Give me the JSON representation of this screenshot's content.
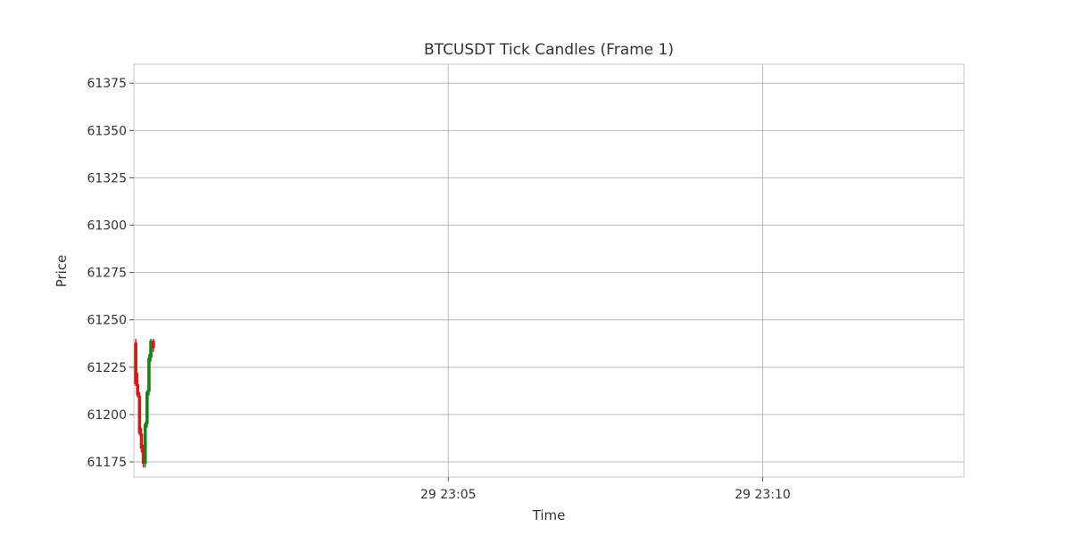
{
  "chart_data": {
    "type": "candlestick",
    "title": "BTCUSDT Tick Candles (Frame 1)",
    "xlabel": "Time",
    "ylabel": "Price",
    "ylim": [
      61167,
      61385
    ],
    "y_ticks": [
      61175,
      61200,
      61225,
      61250,
      61275,
      61300,
      61325,
      61350,
      61375
    ],
    "xlim_minutes": [
      0,
      13.2
    ],
    "x_ticks": [
      {
        "label": "29 23:05",
        "minute": 5
      },
      {
        "label": "29 23:10",
        "minute": 10
      }
    ],
    "grid": true,
    "colors": {
      "up": "#1a7f1a",
      "down": "#d11a1a",
      "grid": "#b8b8b8"
    },
    "candles": [
      {
        "minute": 0.03,
        "open": 61238,
        "high": 61240,
        "low": 61215,
        "close": 61216
      },
      {
        "minute": 0.06,
        "open": 61216,
        "high": 61222,
        "low": 61209,
        "close": 61210
      },
      {
        "minute": 0.09,
        "open": 61210,
        "high": 61212,
        "low": 61189,
        "close": 61190
      },
      {
        "minute": 0.12,
        "open": 61190,
        "high": 61193,
        "low": 61180,
        "close": 61182
      },
      {
        "minute": 0.15,
        "open": 61182,
        "high": 61184,
        "low": 61172,
        "close": 61174
      },
      {
        "minute": 0.18,
        "open": 61174,
        "high": 61196,
        "low": 61172,
        "close": 61195
      },
      {
        "minute": 0.21,
        "open": 61195,
        "high": 61213,
        "low": 61193,
        "close": 61212
      },
      {
        "minute": 0.24,
        "open": 61212,
        "high": 61232,
        "low": 61210,
        "close": 61230
      },
      {
        "minute": 0.27,
        "open": 61230,
        "high": 61240,
        "low": 61228,
        "close": 61239
      },
      {
        "minute": 0.31,
        "open": 61239,
        "high": 61240,
        "low": 61233,
        "close": 61235
      }
    ]
  }
}
